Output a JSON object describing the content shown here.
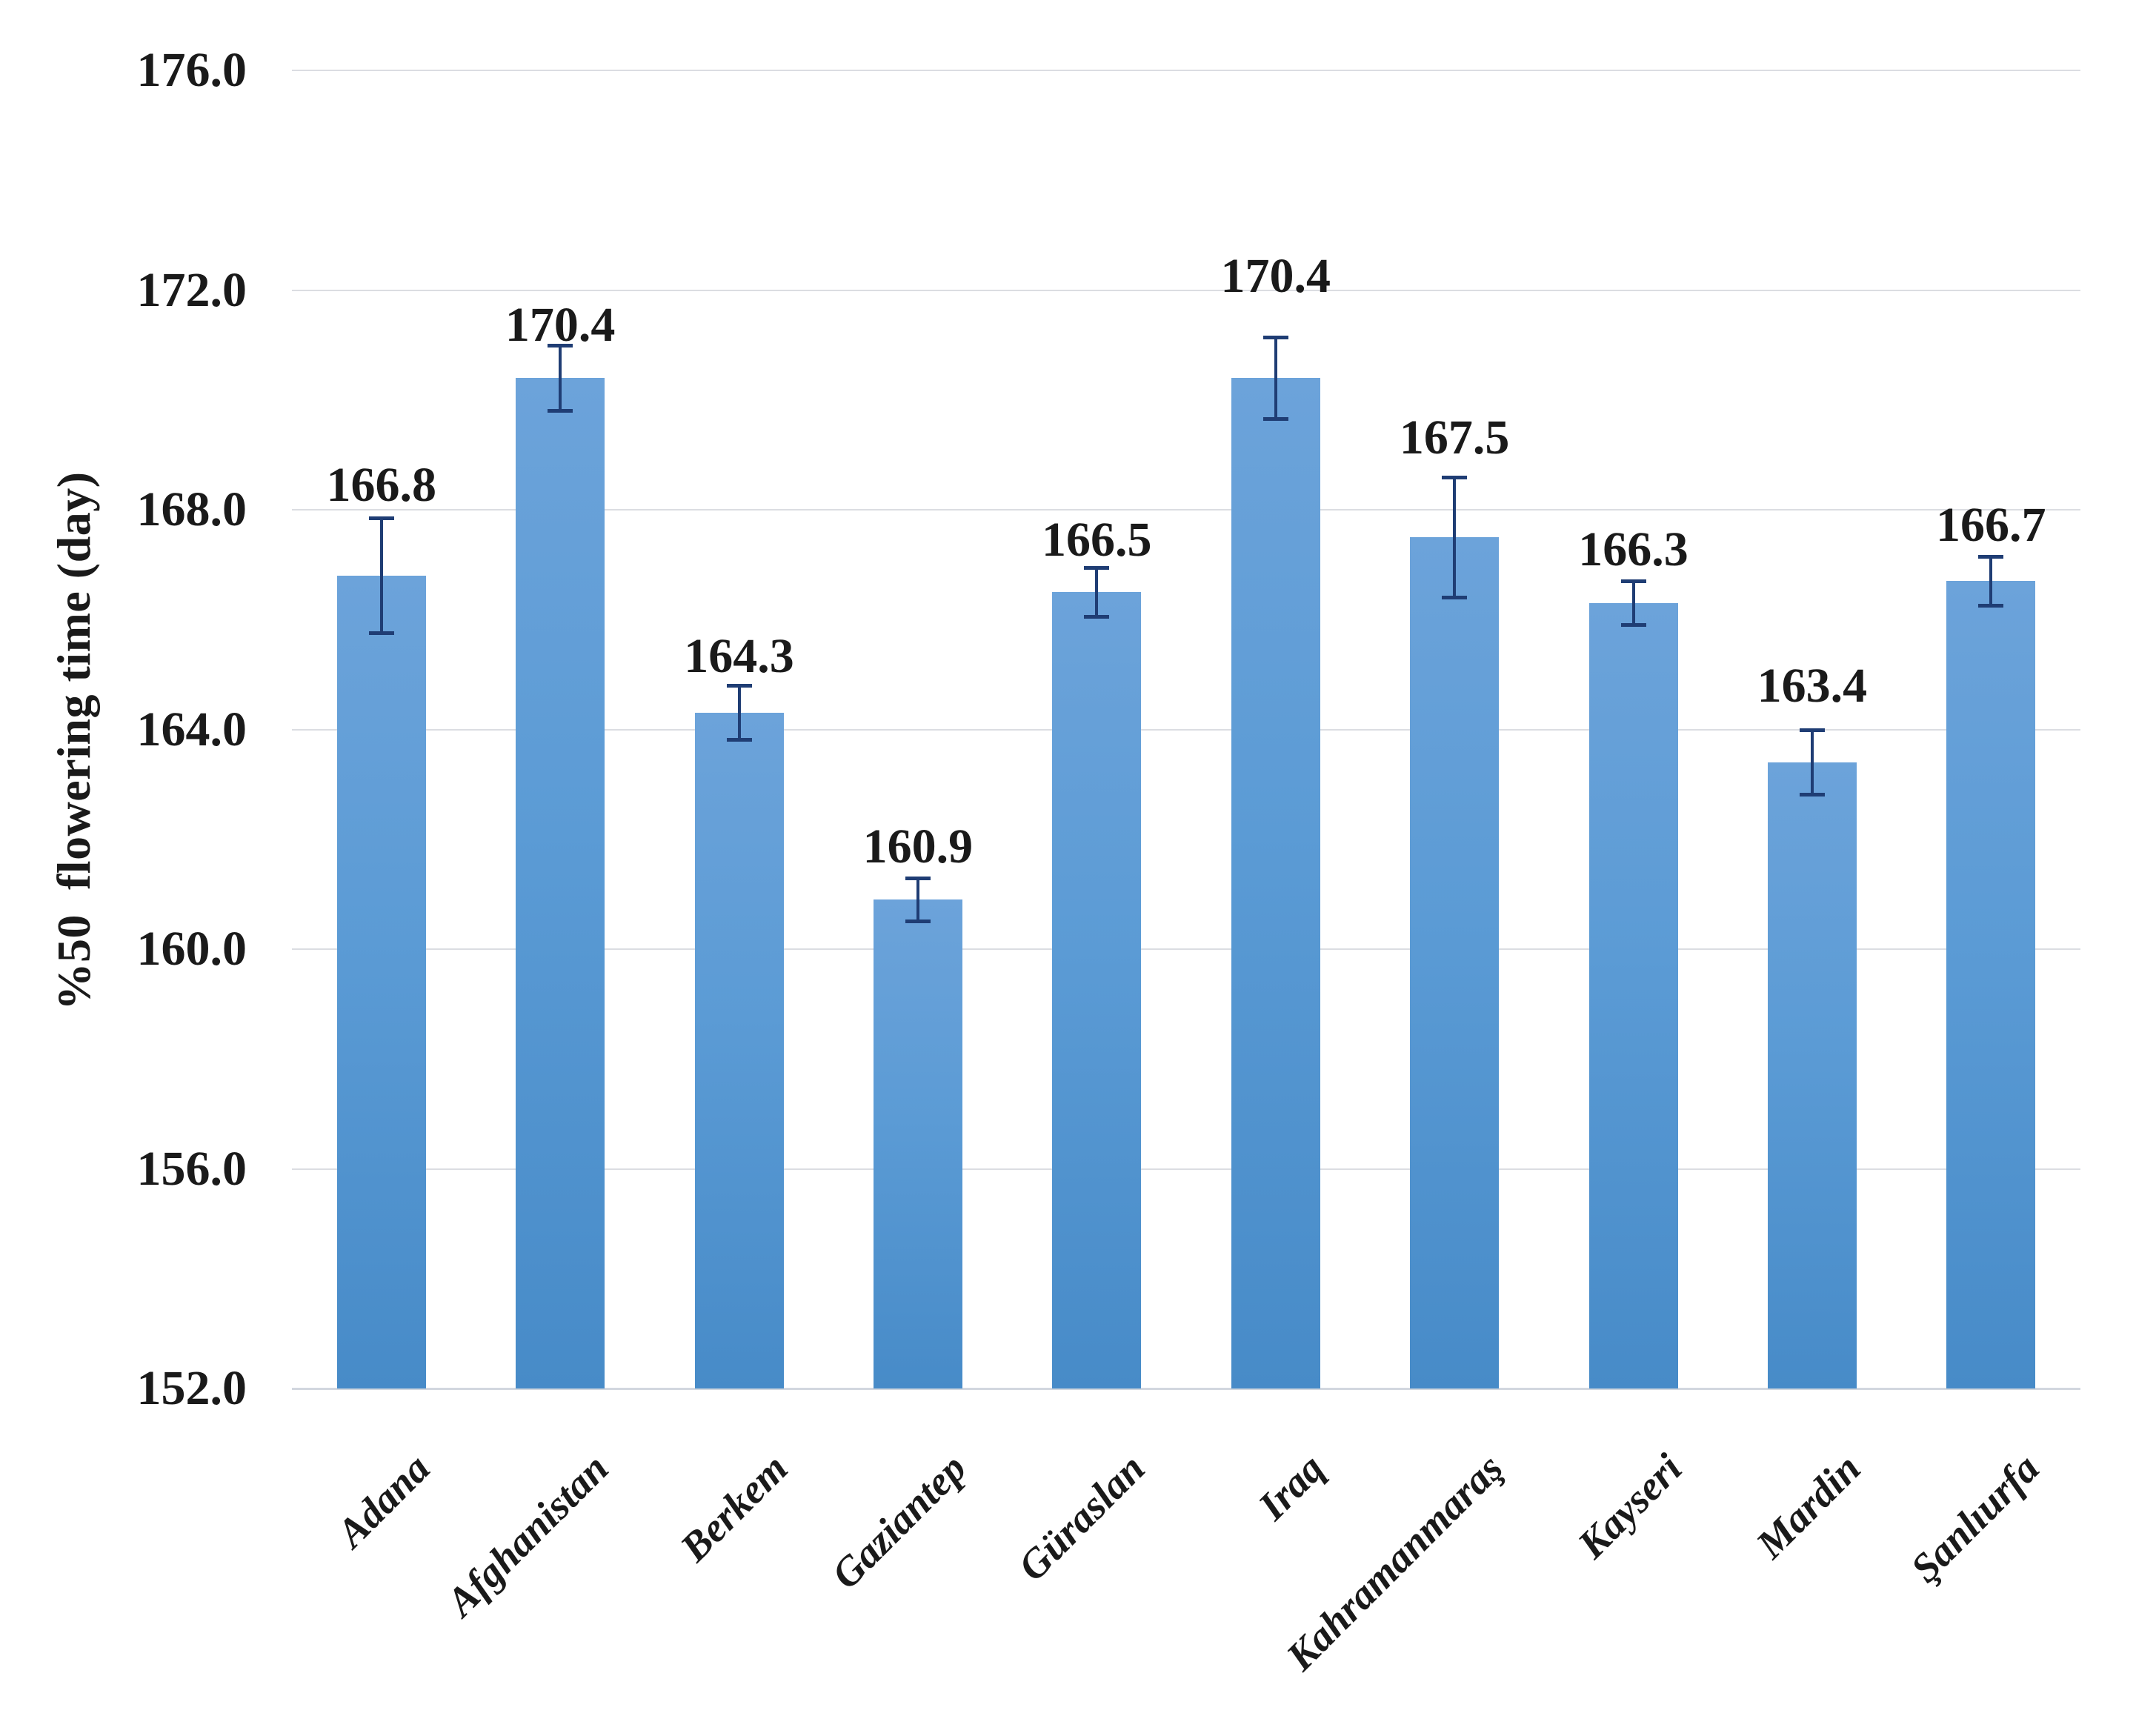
{
  "chart_data": {
    "type": "bar",
    "title": "",
    "xlabel": "",
    "ylabel": "%50  flowering time (day)",
    "ylim": [
      152.0,
      176.0
    ],
    "ytick_step": 4.0,
    "yticks": [
      "176.0",
      "172.0",
      "168.0",
      "164.0",
      "160.0",
      "156.0",
      "152.0"
    ],
    "grid": true,
    "legend": "none",
    "categories": [
      "Adana",
      "Afghanistan",
      "Berkem",
      "Gaziantep",
      "Güraslan",
      "Iraq",
      "Kahramanmaraş",
      "Kayseri",
      "Mardin",
      "Şanlıurfa"
    ],
    "values": [
      166.8,
      170.4,
      164.3,
      160.9,
      166.5,
      170.4,
      167.5,
      166.3,
      163.4,
      166.7
    ],
    "data_labels": [
      "166.8",
      "170.4",
      "164.3",
      "160.9",
      "166.5",
      "170.4",
      "167.5",
      "166.3",
      "163.4",
      "166.7"
    ],
    "errors": [
      1.05,
      0.6,
      0.5,
      0.4,
      0.45,
      0.75,
      1.1,
      0.4,
      0.6,
      0.45
    ],
    "colors": {
      "bar_base": "#5B9BD5",
      "bar_gradient_top": "#6CA3DA",
      "bar_gradient_bottom": "#478BC8",
      "error_bar": "#1F3D74",
      "gridline": "#DBDDE2",
      "axis_line": "#D2D7DF",
      "text": "#1A1A1A"
    }
  }
}
